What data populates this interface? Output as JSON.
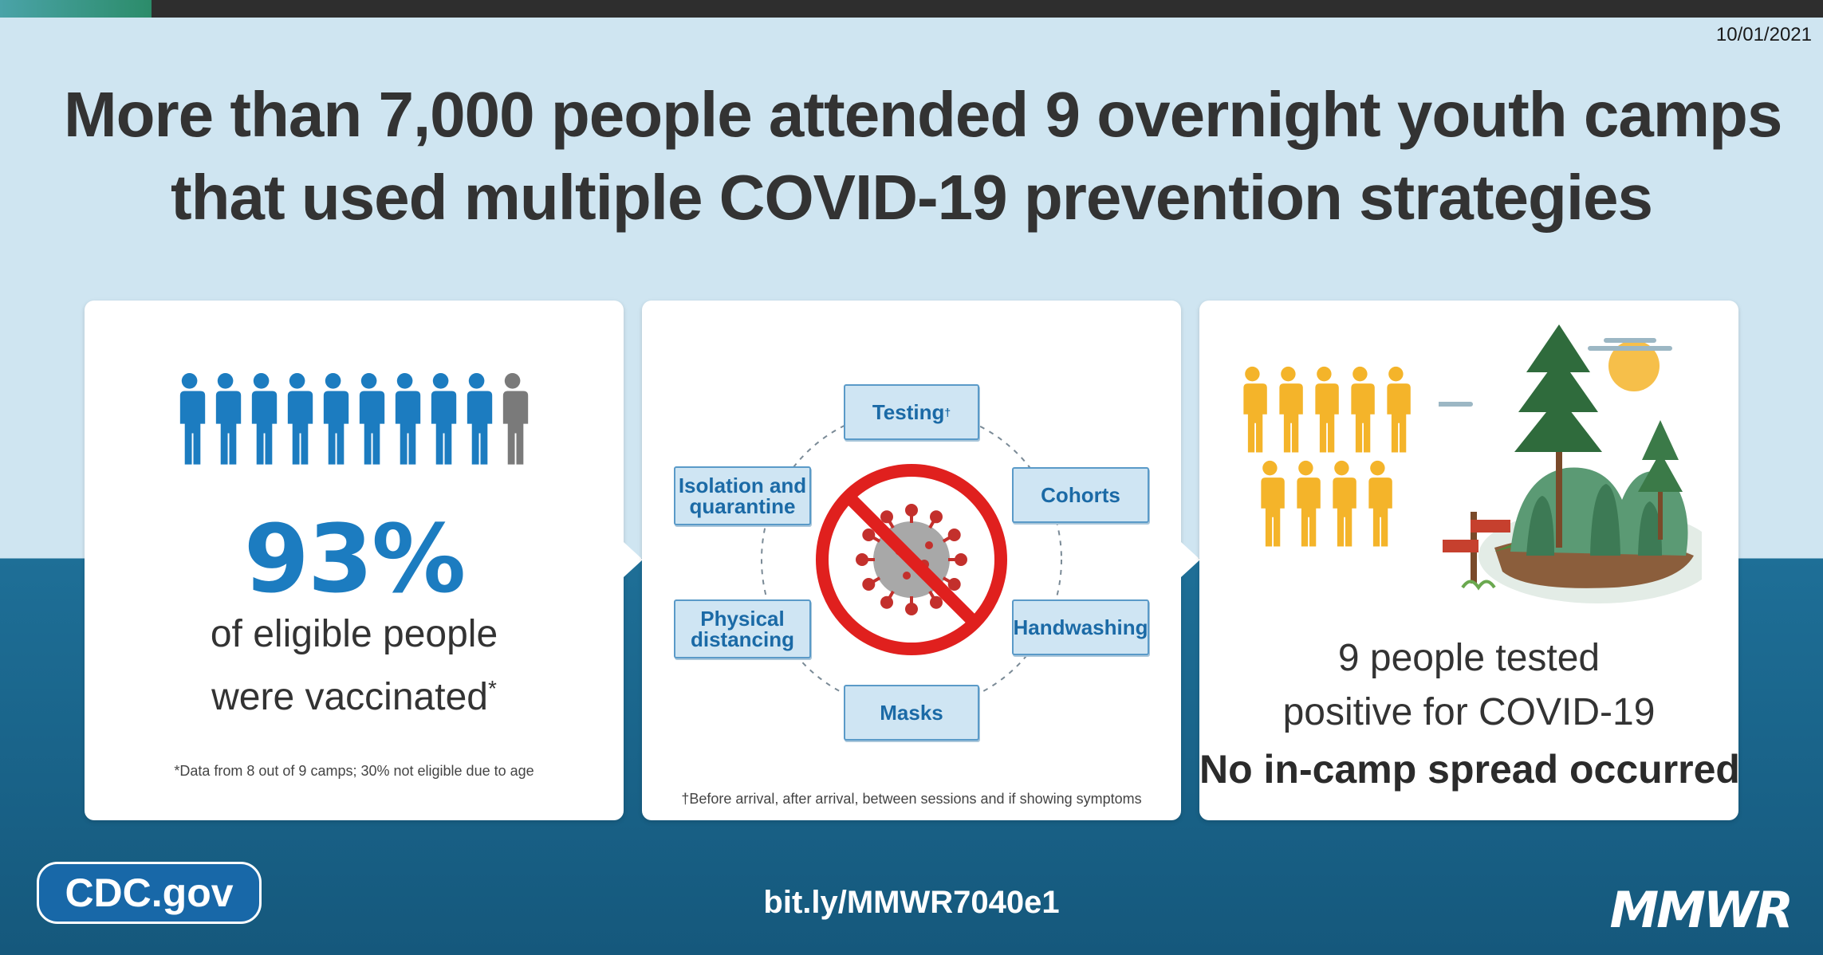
{
  "date": "10/01/2021",
  "title": {
    "line1": "More than 7,000 people attended 9 overnight youth camps",
    "line2": "that used multiple COVID-19 prevention strategies"
  },
  "vaccination_card": {
    "icon": "people-icon",
    "people_total": 10,
    "people_highlighted": 9,
    "highlight_color": "#1c7cc0",
    "other_color": "#7a7a7a",
    "percent": "93%",
    "line1": "of eligible people",
    "line2": "were vaccinated",
    "line2_mark": "*",
    "footnote": "*Data from 8 out of 9 camps; 30% not eligible due to age"
  },
  "strategies_card": {
    "center_icon": "no-virus-icon",
    "testing": "Testing",
    "testing_mark": "†",
    "cohorts": "Cohorts",
    "handwashing": "Handwashing",
    "masks": "Masks",
    "physical_1": "Physical",
    "physical_2": "distancing",
    "isolation_1": "Isolation and",
    "isolation_2": "quarantine",
    "footnote": "†Before arrival, after arrival, between sessions and if showing symptoms"
  },
  "outcome_card": {
    "icon": "people-icon",
    "people_count": 9,
    "people_color": "#f4b42a",
    "illustration": "camp-forest-icon",
    "line1": "9 people tested",
    "line2": "positive for COVID-19",
    "conclusion": "No in-camp spread occurred"
  },
  "footer": {
    "site": "CDC.gov",
    "link": "bit.ly/MMWR7040e1",
    "logo": "MMWR"
  }
}
